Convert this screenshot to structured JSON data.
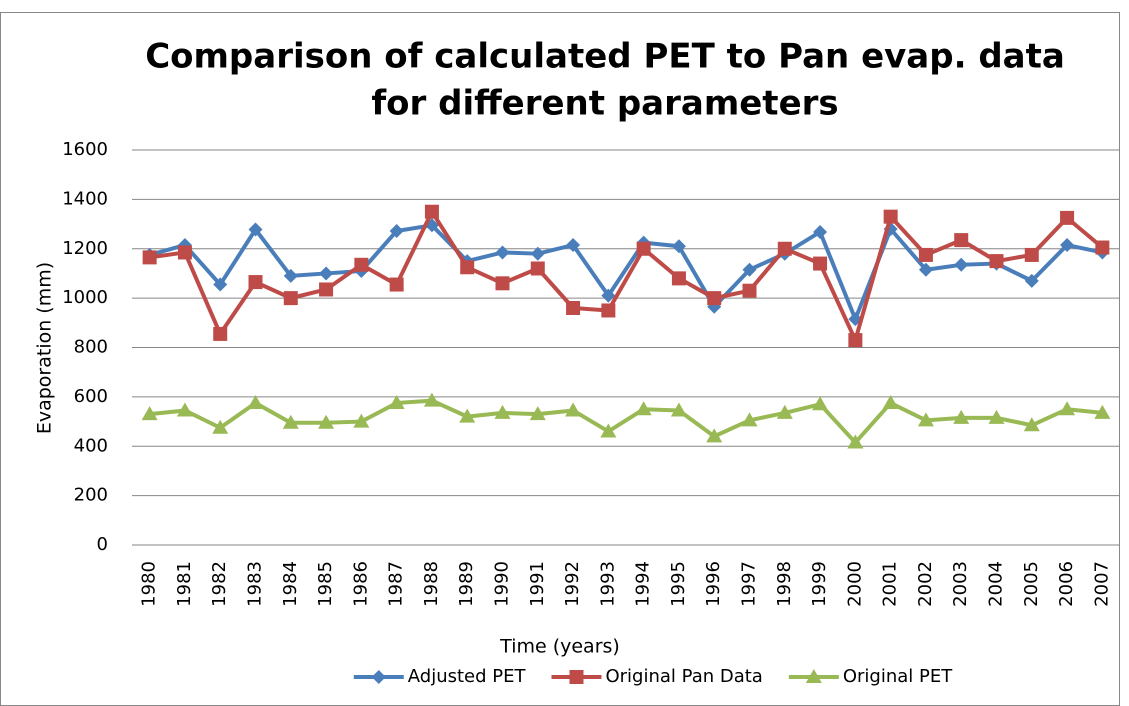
{
  "chart_data": {
    "type": "line",
    "title": [
      "Comparison of calculated PET to Pan evap. data",
      "for different parameters"
    ],
    "x_label": "Time (years)",
    "y_label": "Evaporation (mm)",
    "categories": [
      "1980",
      "1981",
      "1982",
      "1983",
      "1984",
      "1985",
      "1986",
      "1987",
      "1988",
      "1989",
      "1990",
      "1991",
      "1992",
      "1993",
      "1994",
      "1995",
      "1996",
      "1997",
      "1998",
      "1999",
      "2000",
      "2001",
      "2002",
      "2003",
      "2004",
      "2005",
      "2006",
      "2007"
    ],
    "series": [
      {
        "name": "Adjusted PET",
        "color": "#4a7ebb",
        "marker": "diamond",
        "values": [
          1175,
          1215,
          1055,
          1278,
          1090,
          1100,
          1110,
          1272,
          1295,
          1150,
          1185,
          1180,
          1215,
          1010,
          1225,
          1210,
          965,
          1115,
          1180,
          1268,
          915,
          1280,
          1115,
          1135,
          1140,
          1070,
          1215,
          1185
        ]
      },
      {
        "name": "Original Pan Data",
        "color": "#be4b48",
        "marker": "square",
        "values": [
          1165,
          1185,
          855,
          1065,
          1000,
          1035,
          1135,
          1055,
          1350,
          1125,
          1060,
          1120,
          960,
          950,
          1200,
          1080,
          1000,
          1030,
          1200,
          1140,
          830,
          1330,
          1175,
          1235,
          1150,
          1175,
          1325,
          1205
        ]
      },
      {
        "name": "Original PET",
        "color": "#98b954",
        "marker": "triangle",
        "values": [
          530,
          545,
          475,
          575,
          495,
          495,
          500,
          575,
          585,
          520,
          535,
          530,
          545,
          460,
          550,
          545,
          440,
          505,
          535,
          570,
          415,
          575,
          505,
          515,
          515,
          485,
          550,
          535
        ]
      }
    ],
    "ylim": [
      0,
      1600
    ],
    "yticks": [
      0,
      200,
      400,
      600,
      800,
      1000,
      1200,
      1400,
      1600
    ],
    "grid": true,
    "legend": "bottom"
  }
}
